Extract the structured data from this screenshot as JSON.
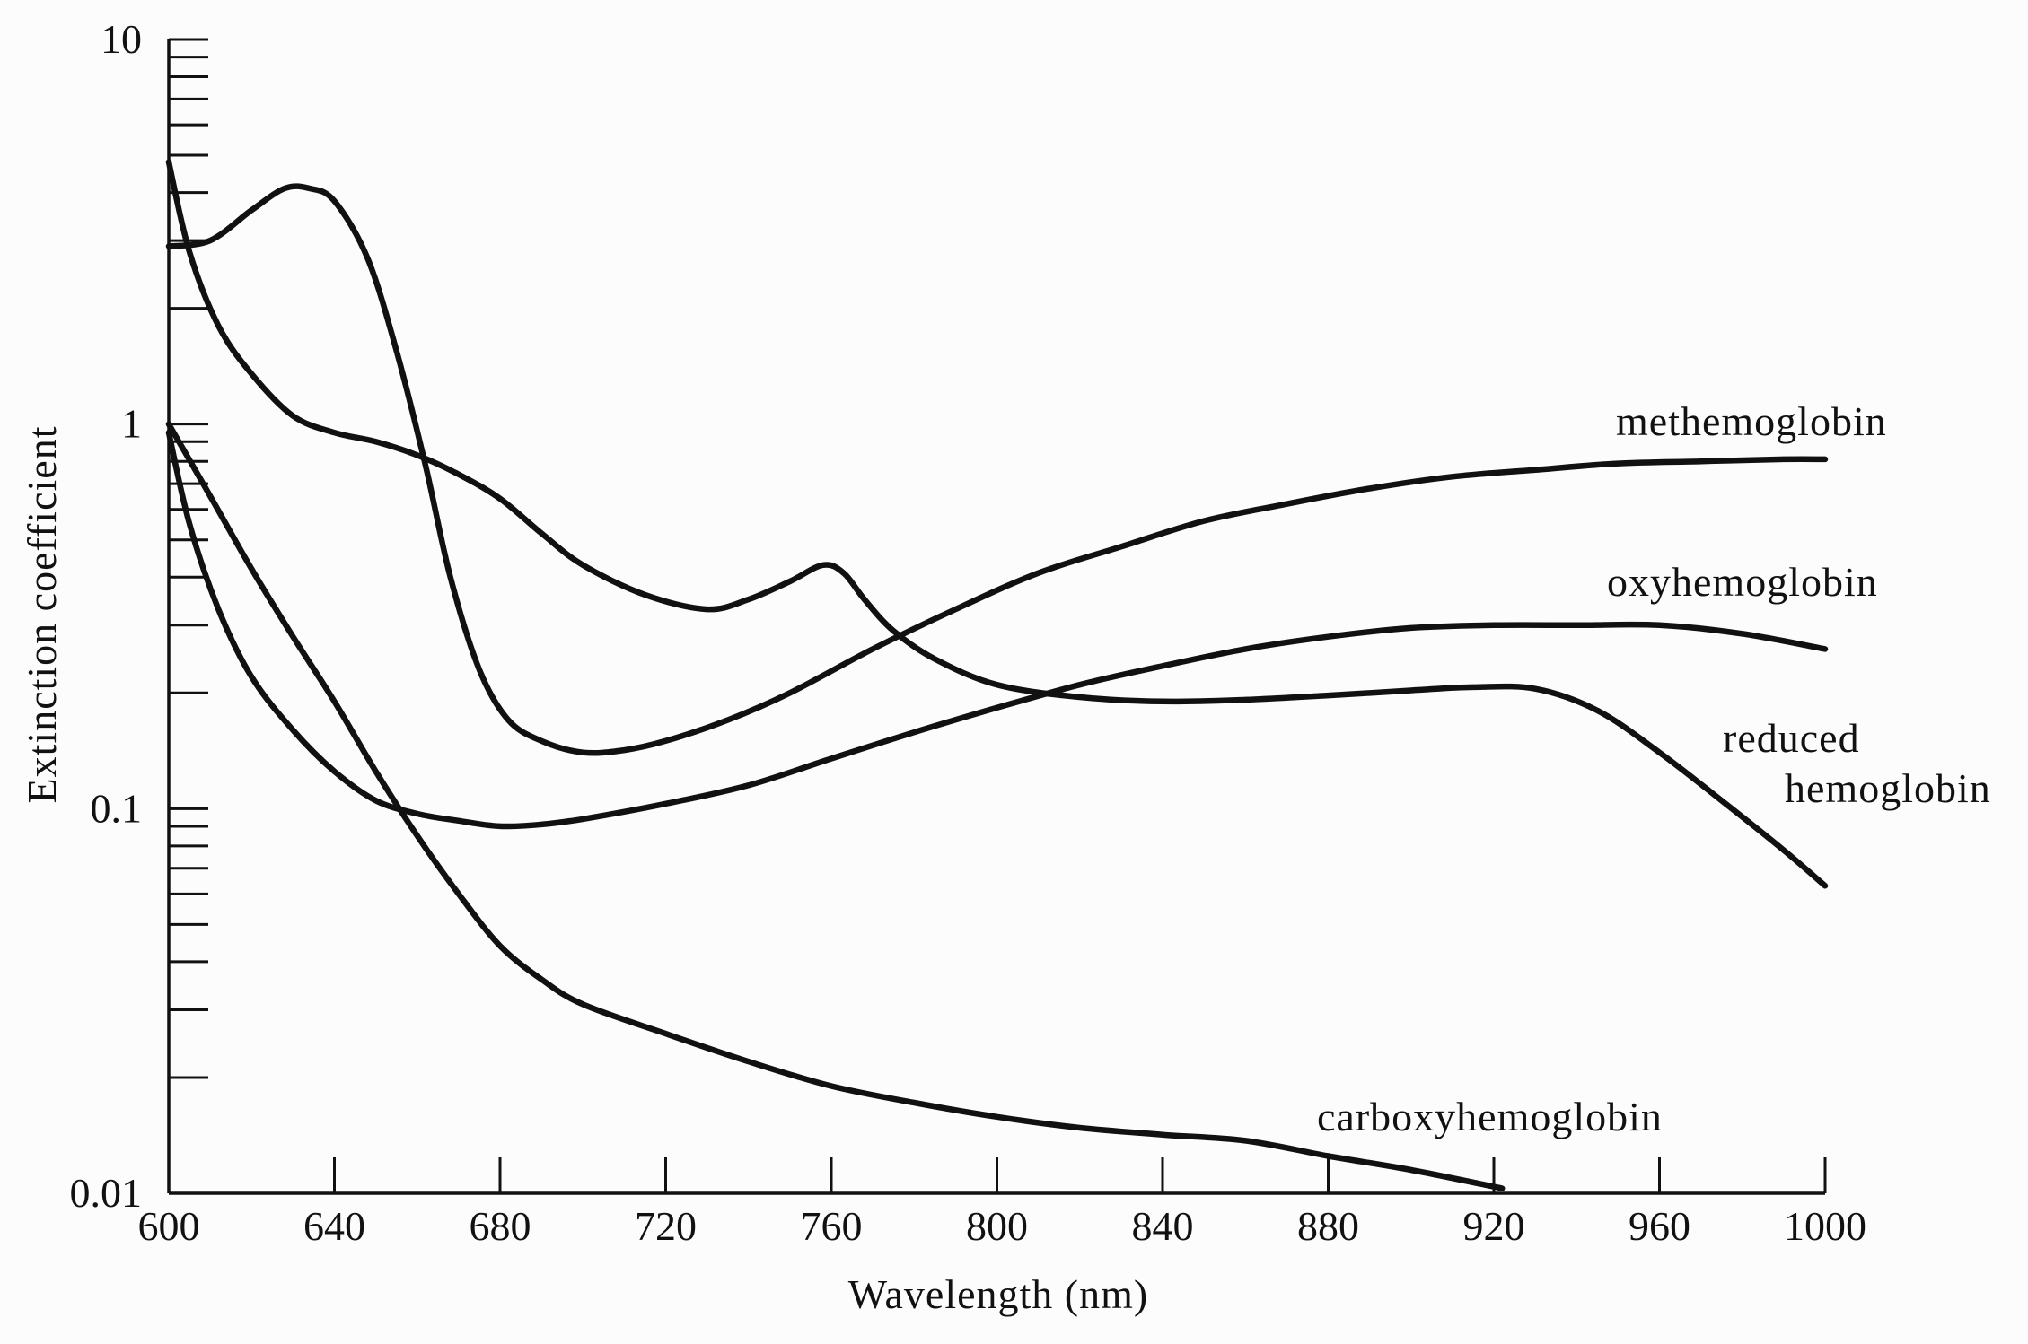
{
  "chart_data": {
    "type": "line",
    "xlabel": "Wavelength (nm)",
    "ylabel": "Extinction coefficient",
    "xlim": [
      600,
      1000
    ],
    "ylim": [
      0.01,
      10
    ],
    "yscale": "log",
    "x_ticks": [
      600,
      640,
      680,
      720,
      760,
      800,
      840,
      880,
      920,
      960,
      1000
    ],
    "y_ticks": [
      0.01,
      0.1,
      1,
      10
    ],
    "y_tick_labels": [
      "0.01",
      "0.1",
      "1",
      "10"
    ],
    "grid": false,
    "legend": "none",
    "series": [
      {
        "name": "methemoglobin",
        "label_lines": [
          "methemoglobin"
        ],
        "x": [
          600,
          610,
          620,
          628,
          634,
          640,
          648,
          655,
          662,
          668,
          675,
          682,
          690,
          700,
          710,
          720,
          735,
          750,
          770,
          790,
          810,
          830,
          850,
          870,
          890,
          910,
          930,
          950,
          970,
          990,
          1000
        ],
        "y": [
          2.9,
          3.0,
          3.6,
          4.1,
          4.1,
          3.8,
          2.7,
          1.55,
          0.78,
          0.4,
          0.23,
          0.17,
          0.15,
          0.14,
          0.142,
          0.15,
          0.17,
          0.2,
          0.26,
          0.33,
          0.41,
          0.48,
          0.56,
          0.62,
          0.68,
          0.73,
          0.76,
          0.79,
          0.8,
          0.81,
          0.81
        ]
      },
      {
        "name": "oxyhemoglobin",
        "label_lines": [
          "oxyhemoglobin"
        ],
        "x": [
          600,
          605,
          612,
          620,
          630,
          640,
          650,
          660,
          670,
          680,
          690,
          700,
          720,
          740,
          760,
          780,
          800,
          820,
          840,
          860,
          880,
          900,
          920,
          940,
          960,
          980,
          1000
        ],
        "y": [
          0.95,
          0.55,
          0.33,
          0.22,
          0.16,
          0.125,
          0.105,
          0.097,
          0.093,
          0.09,
          0.091,
          0.094,
          0.103,
          0.115,
          0.135,
          0.158,
          0.183,
          0.21,
          0.235,
          0.26,
          0.28,
          0.295,
          0.3,
          0.3,
          0.3,
          0.285,
          0.26
        ]
      },
      {
        "name": "reduced hemoglobin",
        "label_lines": [
          "reduced",
          "hemoglobin"
        ],
        "x": [
          600,
          605,
          612,
          620,
          630,
          640,
          650,
          660,
          670,
          680,
          690,
          700,
          715,
          730,
          740,
          750,
          758,
          763,
          768,
          775,
          785,
          800,
          820,
          840,
          860,
          880,
          900,
          915,
          930,
          945,
          960,
          975,
          990,
          1000
        ],
        "y": [
          4.8,
          2.8,
          1.8,
          1.35,
          1.05,
          0.95,
          0.9,
          0.83,
          0.74,
          0.64,
          0.52,
          0.43,
          0.36,
          0.33,
          0.35,
          0.39,
          0.43,
          0.41,
          0.35,
          0.29,
          0.245,
          0.21,
          0.195,
          0.19,
          0.192,
          0.197,
          0.203,
          0.207,
          0.205,
          0.18,
          0.14,
          0.105,
          0.078,
          0.063
        ]
      },
      {
        "name": "carboxyhemoglobin",
        "label_lines": [
          "carboxyhemoglobin"
        ],
        "x": [
          600,
          610,
          620,
          630,
          640,
          650,
          660,
          670,
          680,
          690,
          700,
          720,
          740,
          760,
          780,
          800,
          820,
          840,
          860,
          880,
          900,
          922
        ],
        "y": [
          1.0,
          0.65,
          0.42,
          0.28,
          0.19,
          0.125,
          0.085,
          0.06,
          0.044,
          0.036,
          0.031,
          0.026,
          0.022,
          0.019,
          0.0172,
          0.0158,
          0.0148,
          0.0142,
          0.0137,
          0.0125,
          0.0115,
          0.0103
        ]
      }
    ]
  },
  "colors": {
    "ink": "#111111",
    "background": "#fcfcfc"
  }
}
